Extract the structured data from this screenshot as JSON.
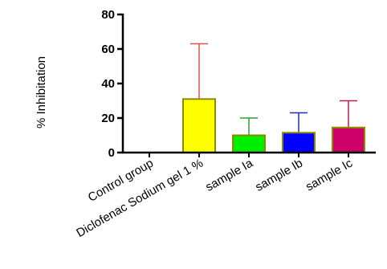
{
  "chart_data": {
    "type": "bar",
    "title": "",
    "xlabel": "",
    "ylabel": "% Inhibitation",
    "ylim": [
      0,
      80
    ],
    "yticks": [
      0,
      20,
      40,
      60,
      80
    ],
    "grid": false,
    "error_bars": "upper",
    "categories": [
      "Control group",
      "Diclofenac Sodium  gel 1 %",
      "sample Ia",
      "sample Ib",
      "sample Ic"
    ],
    "values": [
      0,
      31,
      10,
      11.5,
      14.5
    ],
    "errors": [
      0,
      32,
      10,
      11.5,
      15.5
    ],
    "colors": {
      "fills": [
        "#ffffff",
        "#ffff00",
        "#00ee00",
        "#0000ff",
        "#cc0066"
      ],
      "outline": "#8a8a00",
      "error_bars": [
        "#000000",
        "#d9534f",
        "#2ea02e",
        "#1f2fbf",
        "#c2185b"
      ],
      "axis": "#000000"
    }
  }
}
